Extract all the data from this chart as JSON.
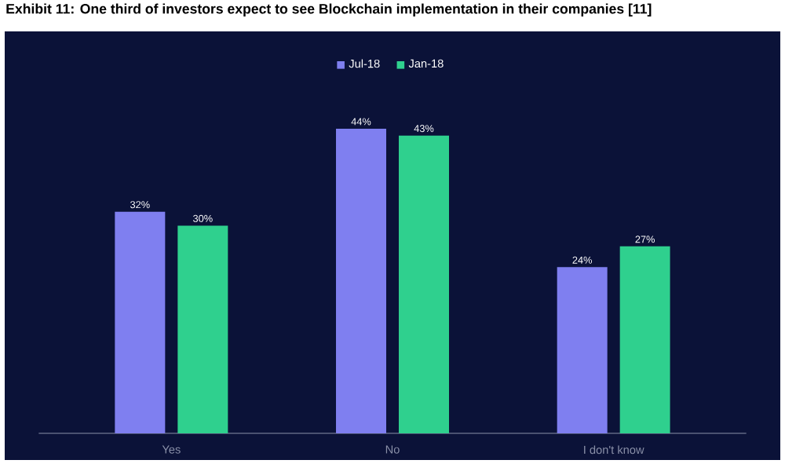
{
  "chart_data": {
    "type": "bar",
    "title": "Exhibit 11: One third of investors expect to see Blockchain implementation in their companies [11]",
    "categories": [
      "Yes",
      "No",
      "I don't know"
    ],
    "series": [
      {
        "name": "Jul-18",
        "color": "#7f7ff0",
        "values": [
          32,
          44,
          24
        ],
        "value_labels": [
          "32%",
          "44%",
          "24%"
        ]
      },
      {
        "name": "Jan-18",
        "color": "#2fd08e",
        "values": [
          30,
          43,
          27
        ],
        "value_labels": [
          "30%",
          "43%",
          "27%"
        ]
      }
    ],
    "data_labels": true,
    "legend": "top"
  }
}
